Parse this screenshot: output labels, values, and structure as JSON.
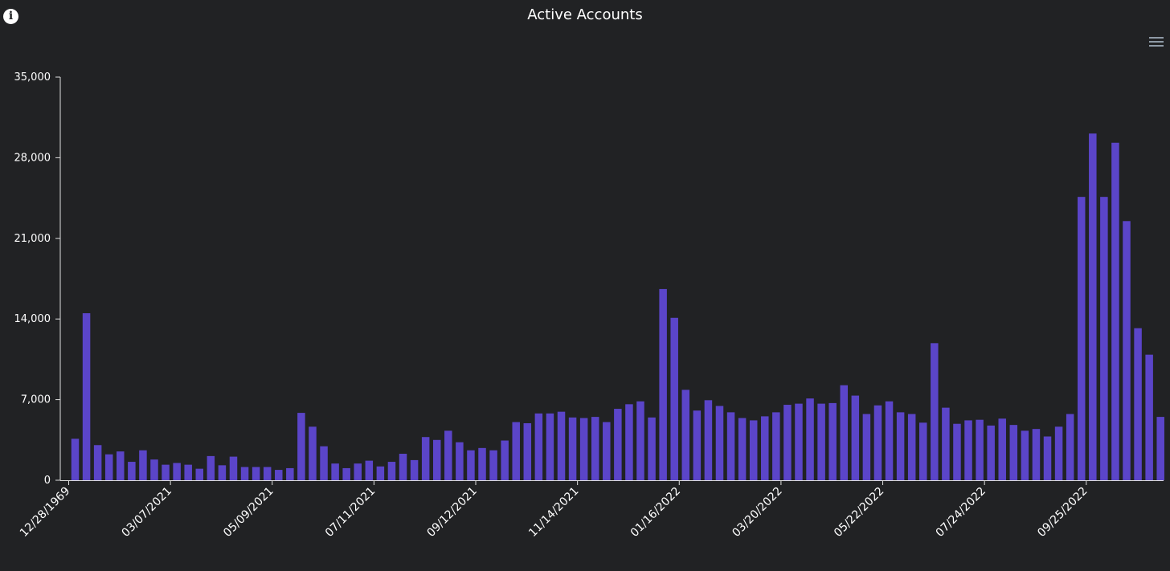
{
  "chart_data": {
    "type": "bar",
    "title": "Active Accounts",
    "xlabel": "",
    "ylabel": "",
    "ylim": [
      0,
      35000
    ],
    "yticks": [
      0,
      7000,
      14000,
      21000,
      28000,
      35000
    ],
    "ytick_labels": [
      "0",
      "7,000",
      "14,000",
      "21,000",
      "28,000",
      "35,000"
    ],
    "xtick_labels": [
      "12/28/1969",
      "03/07/2021",
      "05/09/2021",
      "07/11/2021",
      "09/12/2021",
      "11/14/2021",
      "01/16/2022",
      "03/20/2022",
      "05/22/2022",
      "07/24/2022",
      "09/25/2022"
    ],
    "xtick_positions": [
      0,
      9,
      18,
      27,
      36,
      45,
      54,
      63,
      72,
      81,
      90
    ],
    "bar_color": "#5b45c9",
    "series": [
      {
        "values": [
          3600,
          14500,
          3050,
          2250,
          2500,
          1600,
          2600,
          1800,
          1350,
          1500,
          1350,
          1000,
          2100,
          1300,
          2050,
          1150,
          1150,
          1150,
          900,
          1050,
          5850,
          4650,
          2950,
          1450,
          1050,
          1450,
          1700,
          1200,
          1600,
          2300,
          1750,
          3750,
          3500,
          4300,
          3300,
          2600,
          2800,
          2600,
          3450,
          5050,
          4950,
          5800,
          5800,
          5950,
          5450,
          5400,
          5500,
          5050,
          6200,
          6600,
          6850,
          5450,
          16600,
          14100,
          7850,
          6050,
          6950,
          6450,
          5900,
          5400,
          5200,
          5550,
          5900,
          6550,
          6650,
          7100,
          6650,
          6700,
          8250,
          7350,
          5750,
          6500,
          6850,
          5900,
          5750,
          5000,
          11900,
          6300,
          4900,
          5200,
          5250,
          4750,
          5350,
          4800,
          4300,
          4450,
          3800,
          4650,
          5750,
          24600,
          30100,
          24600,
          29300,
          22500,
          13200,
          10900,
          5500
        ]
      }
    ]
  }
}
